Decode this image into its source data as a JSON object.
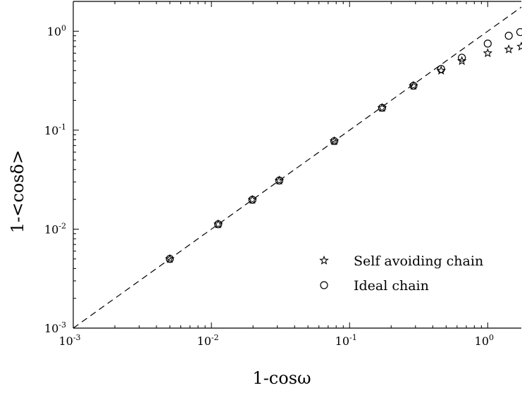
{
  "chart_data": {
    "type": "scatter",
    "xscale": "log",
    "yscale": "log",
    "xlim": [
      0.001,
      1.75
    ],
    "ylim": [
      0.001,
      2.0
    ],
    "xlabel": "1-cosω",
    "ylabel": "1-<cosδ>",
    "xticks": [
      {
        "value": 0.001,
        "base": "10",
        "exp": "-3"
      },
      {
        "value": 0.01,
        "base": "10",
        "exp": "-2"
      },
      {
        "value": 0.1,
        "base": "10",
        "exp": "-1"
      },
      {
        "value": 1,
        "base": "10",
        "exp": "0"
      }
    ],
    "yticks": [
      {
        "value": 0.001,
        "base": "10",
        "exp": "-3"
      },
      {
        "value": 0.01,
        "base": "10",
        "exp": "-2"
      },
      {
        "value": 0.1,
        "base": "10",
        "exp": "-1"
      },
      {
        "value": 1,
        "base": "10",
        "exp": "0"
      }
    ],
    "grid": false,
    "legend_position": "bottom-right",
    "reference_line": {
      "style": "dashed",
      "x": [
        0.001,
        1.75
      ],
      "y": [
        0.001,
        1.75
      ]
    },
    "series": [
      {
        "name": "Self avoiding chain",
        "marker": "star",
        "x": [
          0.005,
          0.0112,
          0.0198,
          0.031,
          0.0775,
          0.172,
          0.29,
          0.46,
          0.65,
          1.0,
          1.42,
          1.75
        ],
        "y": [
          0.005,
          0.0112,
          0.0198,
          0.031,
          0.0775,
          0.168,
          0.281,
          0.4,
          0.5,
          0.6,
          0.655,
          0.7
        ]
      },
      {
        "name": "Ideal chain",
        "marker": "circle",
        "x": [
          0.005,
          0.0112,
          0.0198,
          0.031,
          0.0775,
          0.172,
          0.29,
          0.46,
          0.65,
          1.0,
          1.42,
          1.72
        ],
        "y": [
          0.005,
          0.0112,
          0.0198,
          0.031,
          0.0775,
          0.168,
          0.281,
          0.415,
          0.54,
          0.75,
          0.9,
          0.98
        ]
      }
    ]
  }
}
